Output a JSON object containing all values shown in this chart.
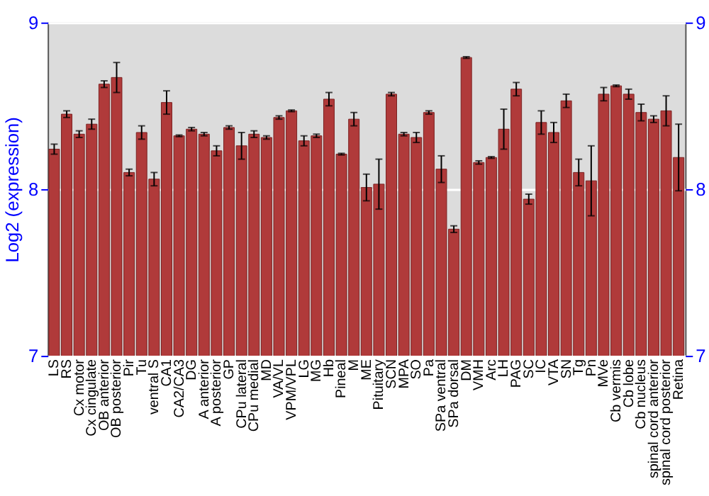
{
  "chart_data": {
    "type": "bar",
    "ylabel": "Log2 (expression)",
    "categories": [
      "LS",
      "RS",
      "Cx motor",
      "Cx cingulate",
      "OB anterior",
      "OB posterior",
      "Pir",
      "Tu",
      "ventral S",
      "CA1",
      "CA2/CA3",
      "DG",
      "A anterior",
      "A posterior",
      "GP",
      "CPu lateral",
      "CPu medial",
      "MD",
      "VA/VL",
      "VPM/VPL",
      "LG",
      "MG",
      "Hb",
      "Pineal",
      "M",
      "ME",
      "Pituitary",
      "SCN",
      "MPA",
      "SO",
      "Pa",
      "SPa ventral",
      "SPa dorsal",
      "DM",
      "VMH",
      "Arc",
      "LH",
      "PAG",
      "SC",
      "IC",
      "VTA",
      "SN",
      "Tg",
      "Pn",
      "MVe",
      "Cb vermis",
      "Cb lobe",
      "Cb nucleus",
      "spinal cord anterior",
      "spinal cord posterior",
      "Retina"
    ],
    "values": [
      8.24,
      8.45,
      8.33,
      8.39,
      8.63,
      8.67,
      8.1,
      8.34,
      8.06,
      8.52,
      8.32,
      8.36,
      8.33,
      8.23,
      8.37,
      8.26,
      8.33,
      8.31,
      8.43,
      8.47,
      8.29,
      8.32,
      8.54,
      8.21,
      8.42,
      8.01,
      8.03,
      8.57,
      8.33,
      8.31,
      8.46,
      8.12,
      7.76,
      8.79,
      8.16,
      8.19,
      8.36,
      8.6,
      7.94,
      8.4,
      8.34,
      8.53,
      8.1,
      8.05,
      8.57,
      8.62,
      8.57,
      8.46,
      8.42,
      8.47,
      8.19
    ],
    "errors": [
      0.03,
      0.02,
      0.02,
      0.03,
      0.02,
      0.09,
      0.02,
      0.04,
      0.04,
      0.07,
      0.005,
      0.01,
      0.01,
      0.03,
      0.01,
      0.08,
      0.02,
      0.01,
      0.01,
      0.005,
      0.03,
      0.01,
      0.04,
      0.005,
      0.04,
      0.08,
      0.15,
      0.01,
      0.01,
      0.03,
      0.01,
      0.08,
      0.02,
      0.005,
      0.01,
      0.005,
      0.12,
      0.04,
      0.03,
      0.07,
      0.06,
      0.04,
      0.08,
      0.21,
      0.04,
      0.005,
      0.03,
      0.05,
      0.02,
      0.09,
      0.2
    ],
    "color": "#b03a3a",
    "ylim": [
      7,
      9
    ],
    "yticks": [
      7,
      8,
      9
    ],
    "y2lim": [
      7,
      9
    ],
    "y2ticks": [
      7,
      8,
      9
    ],
    "grid": "y"
  }
}
